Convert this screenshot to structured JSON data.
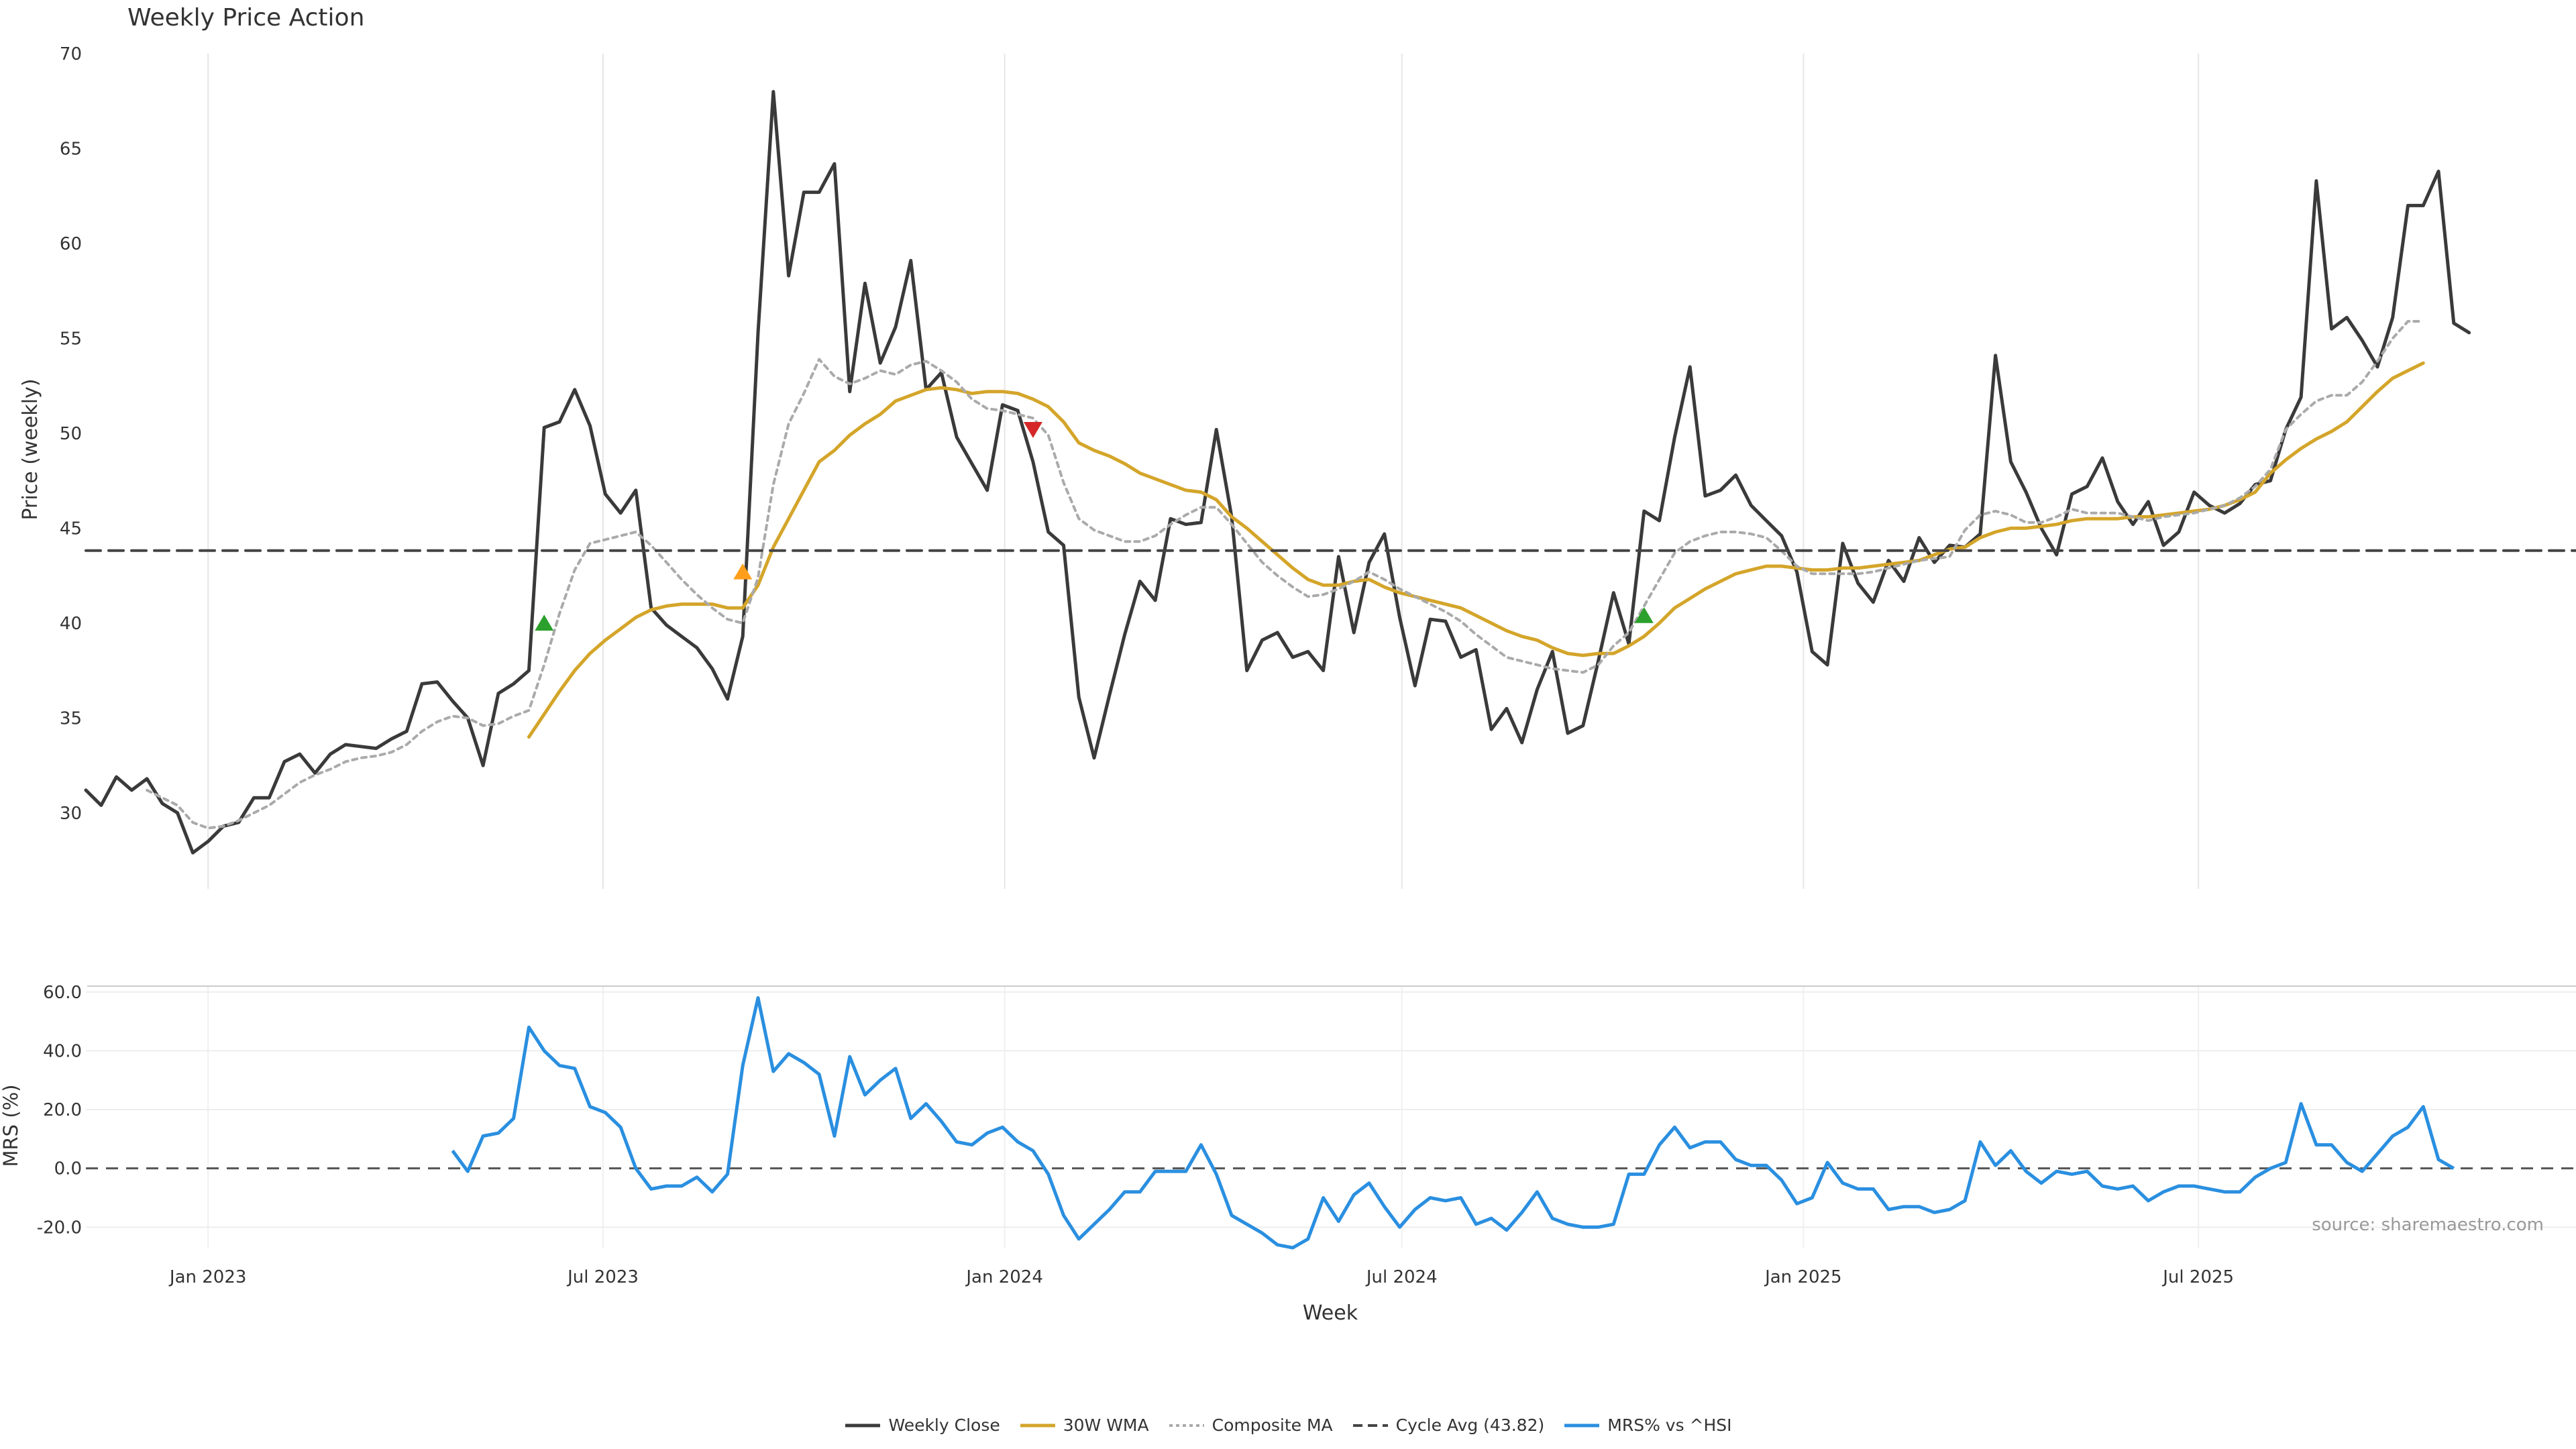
{
  "title": "Weekly Price Action",
  "source": "source: sharemaestro.com",
  "chart_data": [
    {
      "type": "line",
      "title": "Weekly Price Action",
      "xlabel": "Week",
      "ylabel": "Price (weekly)",
      "ylim": [
        26,
        70
      ],
      "yticks": [
        30,
        35,
        40,
        45,
        50,
        55,
        60,
        65,
        70
      ],
      "xticks": [
        {
          "label": "Jan 2023",
          "date": "2023-01-01"
        },
        {
          "label": "Jul 2023",
          "date": "2023-07-01"
        },
        {
          "label": "Jan 2024",
          "date": "2024-01-01"
        },
        {
          "label": "Jul 2024",
          "date": "2024-07-01"
        },
        {
          "label": "Jan 2025",
          "date": "2025-01-01"
        },
        {
          "label": "Jul 2025",
          "date": "2025-07-01"
        }
      ],
      "grid": "vertical",
      "x_start": "2022-11-06",
      "x_end": "2025-12-21",
      "series": [
        {
          "name": "Weekly Close",
          "color": "#3a3a3a",
          "style": "solid",
          "values": [
            31.2,
            30.4,
            31.9,
            31.2,
            31.8,
            30.5,
            30.0,
            27.9,
            28.5,
            29.3,
            29.5,
            30.8,
            30.8,
            32.7,
            33.1,
            32.1,
            33.1,
            33.6,
            33.5,
            33.4,
            33.9,
            34.3,
            36.8,
            36.9,
            35.9,
            35.0,
            32.5,
            36.3,
            36.8,
            37.5,
            50.3,
            50.6,
            52.3,
            50.4,
            46.8,
            45.8,
            47.0,
            40.8,
            39.9,
            39.3,
            38.7,
            37.6,
            36.0,
            39.3,
            55.3,
            68.0,
            58.3,
            62.7,
            62.7,
            64.2,
            52.2,
            57.9,
            53.7,
            55.6,
            59.1,
            52.3,
            53.2,
            49.8,
            48.4,
            47.0,
            51.5,
            51.2,
            48.5,
            44.8,
            44.1,
            36.1,
            32.9,
            36.2,
            39.4,
            42.2,
            41.2,
            45.5,
            45.2,
            45.3,
            50.2,
            45.6,
            37.5,
            39.1,
            39.5,
            38.2,
            38.5,
            37.5,
            43.5,
            39.5,
            43.2,
            44.7,
            40.3,
            36.7,
            40.2,
            40.1,
            38.2,
            38.6,
            34.4,
            35.5,
            33.7,
            36.5,
            38.5,
            34.2,
            34.6,
            38.0,
            41.6,
            38.9,
            45.9,
            45.4,
            49.8,
            53.5,
            46.7,
            47.0,
            47.8,
            46.2,
            45.4,
            44.6,
            42.7,
            38.5,
            37.8,
            44.2,
            42.1,
            41.1,
            43.3,
            42.2,
            44.5,
            43.2,
            44.1,
            44.0,
            44.7,
            54.1,
            48.5,
            46.9,
            45.0,
            43.6,
            46.8,
            47.2,
            48.7,
            46.4,
            45.2,
            46.4,
            44.1,
            44.8,
            46.9,
            46.2,
            45.8,
            46.3,
            47.3,
            47.5,
            50.2,
            51.9,
            63.3,
            55.5,
            56.1,
            54.9,
            53.5,
            56.1,
            62.0,
            62.0,
            63.8,
            55.8,
            55.3
          ]
        },
        {
          "name": "30W WMA",
          "color": "#d4a52a",
          "style": "solid",
          "values": [
            null,
            null,
            null,
            null,
            null,
            null,
            null,
            null,
            null,
            null,
            null,
            null,
            null,
            null,
            null,
            null,
            null,
            null,
            null,
            null,
            null,
            null,
            null,
            null,
            null,
            null,
            null,
            null,
            null,
            34.0,
            35.2,
            36.4,
            37.5,
            38.4,
            39.1,
            39.7,
            40.3,
            40.7,
            40.9,
            41.0,
            41.0,
            41.0,
            40.8,
            40.8,
            42.0,
            44.0,
            45.5,
            47.0,
            48.5,
            49.1,
            49.9,
            50.5,
            51.0,
            51.7,
            52.0,
            52.3,
            52.4,
            52.3,
            52.1,
            52.2,
            52.2,
            52.1,
            51.8,
            51.4,
            50.6,
            49.5,
            49.1,
            48.8,
            48.4,
            47.9,
            47.6,
            47.3,
            47.0,
            46.9,
            46.5,
            45.6,
            45.0,
            44.3,
            43.6,
            42.9,
            42.3,
            42.0,
            42.0,
            42.2,
            42.3,
            41.9,
            41.6,
            41.4,
            41.2,
            41.0,
            40.8,
            40.4,
            40.0,
            39.6,
            39.3,
            39.1,
            38.7,
            38.4,
            38.3,
            38.4,
            38.4,
            38.8,
            39.3,
            40.0,
            40.8,
            41.3,
            41.8,
            42.2,
            42.6,
            42.8,
            43.0,
            43.0,
            42.9,
            42.8,
            42.8,
            42.9,
            42.9,
            43.0,
            43.1,
            43.2,
            43.3,
            43.6,
            43.9,
            44.0,
            44.5,
            44.8,
            45.0,
            45.0,
            45.1,
            45.2,
            45.4,
            45.5,
            45.5,
            45.5,
            45.6,
            45.6,
            45.7,
            45.8,
            45.9,
            46.0,
            46.2,
            46.5,
            46.9,
            47.9,
            48.6,
            49.2,
            49.7,
            50.1,
            50.6,
            51.4,
            52.2,
            52.9,
            53.3,
            53.7
          ]
        },
        {
          "name": "Composite MA",
          "color": "#aaaaaa",
          "style": "dotted",
          "values": [
            null,
            null,
            null,
            null,
            31.2,
            30.8,
            30.4,
            29.5,
            29.2,
            29.3,
            29.6,
            30.0,
            30.4,
            31.0,
            31.6,
            32.0,
            32.3,
            32.7,
            32.9,
            33.0,
            33.2,
            33.6,
            34.3,
            34.8,
            35.1,
            35.0,
            34.6,
            34.7,
            35.1,
            35.4,
            37.8,
            40.5,
            42.8,
            44.2,
            44.4,
            44.6,
            44.8,
            44.1,
            43.2,
            42.3,
            41.5,
            40.8,
            40.2,
            40.0,
            42.4,
            47.3,
            50.5,
            52.1,
            53.9,
            53.0,
            52.6,
            52.9,
            53.3,
            53.1,
            53.6,
            53.8,
            53.3,
            52.7,
            51.8,
            51.3,
            51.2,
            51.0,
            50.8,
            49.9,
            47.4,
            45.5,
            44.9,
            44.6,
            44.3,
            44.3,
            44.6,
            45.2,
            45.7,
            46.1,
            46.1,
            45.2,
            44.2,
            43.2,
            42.5,
            41.9,
            41.4,
            41.5,
            41.8,
            42.2,
            42.7,
            42.3,
            41.8,
            41.4,
            41.0,
            40.6,
            40.1,
            39.4,
            38.8,
            38.2,
            38.0,
            37.8,
            37.6,
            37.5,
            37.4,
            37.8,
            38.8,
            39.5,
            40.9,
            42.3,
            43.7,
            44.3,
            44.6,
            44.8,
            44.8,
            44.7,
            44.5,
            43.8,
            43.0,
            42.6,
            42.6,
            42.6,
            42.6,
            42.7,
            42.9,
            43.1,
            43.3,
            43.4,
            43.5,
            44.9,
            45.7,
            45.9,
            45.7,
            45.3,
            45.3,
            45.6,
            46.0,
            45.8,
            45.8,
            45.8,
            45.6,
            45.4,
            45.6,
            45.7,
            45.8,
            46.0,
            46.2,
            46.6,
            47.2,
            48.1,
            50.2,
            51.0,
            51.7,
            52.0,
            52.0,
            52.7,
            53.8,
            55.0,
            55.9,
            55.9
          ]
        },
        {
          "name": "Cycle Avg (43.82)",
          "color": "#444444",
          "style": "dashed",
          "constant": 43.82
        }
      ],
      "markers": [
        {
          "index": 30,
          "value": 40.0,
          "shape": "triangle-up",
          "color": "#2ca02c"
        },
        {
          "index": 43,
          "value": 42.7,
          "shape": "triangle-up",
          "color": "#ff9e1a"
        },
        {
          "index": 62,
          "value": 50.2,
          "shape": "triangle-down",
          "color": "#d62728"
        },
        {
          "index": 102,
          "value": 40.4,
          "shape": "triangle-up",
          "color": "#2ca02c"
        }
      ]
    },
    {
      "type": "line",
      "xlabel": "Week",
      "ylabel": "MRS (%)",
      "ylim": [
        -27,
        62
      ],
      "yticks": [
        -20.0,
        0.0,
        20.0,
        40.0,
        60.0
      ],
      "ytick_labels": [
        "-20.0",
        "0.0",
        "20.0",
        "40.0",
        "60.0"
      ],
      "zero_line": "dashed",
      "grid": "horizontal",
      "series": [
        {
          "name": "MRS% vs ^HSI",
          "color": "#2a8fe0",
          "start_index": 24,
          "values": [
            6,
            -1,
            11,
            12,
            17,
            48,
            40,
            35,
            34,
            21,
            19,
            14,
            0,
            -7,
            -6,
            -6,
            -3,
            -8,
            -2,
            35,
            58,
            33,
            39,
            36,
            32,
            11,
            38,
            25,
            30,
            34,
            17,
            22,
            16,
            9,
            8,
            12,
            14,
            9,
            6,
            -2,
            -16,
            -24,
            -19,
            -14,
            -8,
            -8,
            -1,
            -1,
            -1,
            8,
            -2,
            -16,
            -19,
            -22,
            -26,
            -27,
            -24,
            -10,
            -18,
            -9,
            -5,
            -13,
            -20,
            -14,
            -10,
            -11,
            -10,
            -19,
            -17,
            -21,
            -15,
            -8,
            -17,
            -19,
            -20,
            -20,
            -19,
            -2,
            -2,
            8,
            14,
            7,
            9,
            9,
            3,
            1,
            1,
            -4,
            -12,
            -10,
            2,
            -5,
            -7,
            -7,
            -14,
            -13,
            -13,
            -15,
            -14,
            -11,
            9,
            1,
            6,
            -1,
            -5,
            -1,
            -2,
            -1,
            -6,
            -7,
            -6,
            -11,
            -8,
            -6,
            -6,
            -7,
            -8,
            -8,
            -3,
            0,
            2,
            22,
            8,
            8,
            2,
            -1,
            5,
            11,
            14,
            21,
            3,
            0
          ]
        }
      ]
    }
  ],
  "legend": [
    {
      "label": "Weekly Close",
      "color": "#3a3a3a",
      "style": "solid"
    },
    {
      "label": "30W WMA",
      "color": "#d4a52a",
      "style": "solid"
    },
    {
      "label": "Composite MA",
      "color": "#aaaaaa",
      "style": "dotted"
    },
    {
      "label": "Cycle Avg (43.82)",
      "color": "#444444",
      "style": "dashed"
    },
    {
      "label": "MRS% vs ^HSI",
      "color": "#2a8fe0",
      "style": "solid"
    }
  ]
}
